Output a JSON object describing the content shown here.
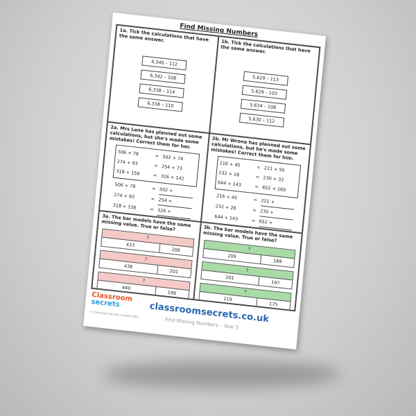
{
  "title": "Find Missing Numbers",
  "q1a": {
    "prompt": "1a. Tick the calculations that have the same answer.",
    "items": [
      "6,340 – 112",
      "6,342 – 108",
      "6,338 – 114",
      "6,338 – 110"
    ]
  },
  "q1b": {
    "prompt": "1b. Tick the calculations that have the same answer.",
    "items": [
      "5,629 – 113",
      "5,629 – 103",
      "5,634 – 108",
      "5,630 – 112"
    ]
  },
  "q2a": {
    "prompt": "2a. Mrs Lane has planned out some calculations, but she's made some mistakes! Correct them for her.",
    "rows": [
      [
        "506 + 78",
        "=",
        "502 + 74"
      ],
      [
        "274 + 93",
        "=",
        "254 + 73"
      ],
      [
        "318 + 156",
        "=",
        "326 + 142"
      ]
    ],
    "answers": [
      [
        "506 + 78",
        "=",
        "502 +"
      ],
      [
        "274 + 93",
        "=",
        "254 +"
      ],
      [
        "318 + 156",
        "=",
        "326 +"
      ]
    ]
  },
  "q2b": {
    "prompt": "2b. Mr Wrona has planned out some calculations, but he's made some mistakes! Correct them for him.",
    "rows": [
      [
        "216 + 45",
        "=",
        "221 + 50"
      ],
      [
        "232 + 28",
        "=",
        "230 + 32"
      ],
      [
        "644 + 143",
        "=",
        "652 + 160"
      ]
    ],
    "answers": [
      [
        "216 + 45",
        "=",
        "221 +"
      ],
      [
        "232 + 28",
        "=",
        "230 +"
      ],
      [
        "644 + 143",
        "=",
        "652 +"
      ]
    ]
  },
  "q3a": {
    "prompt": "3a. The bar models have the same missing value. True or false?",
    "bars": [
      [
        "?",
        "433",
        "206"
      ],
      [
        "?",
        "438",
        "201"
      ],
      [
        "?",
        "440",
        "199"
      ]
    ],
    "color": "#f4c9c6"
  },
  "q3b": {
    "prompt": "3b. The bar models have the same missing value. True or false?",
    "bars": [
      [
        "?",
        "209",
        "189"
      ],
      [
        "?",
        "201",
        "197"
      ],
      [
        "?",
        "219",
        "175"
      ]
    ],
    "color": "#a8dba6"
  },
  "footer": {
    "logo_line1": "Classroom",
    "logo_line2": "secrets",
    "copyright": "© Classroom Secrets Limited 2022",
    "website": "classroomsecrets.co.uk",
    "subtitle": "Find Missing Numbers – Year 5"
  }
}
